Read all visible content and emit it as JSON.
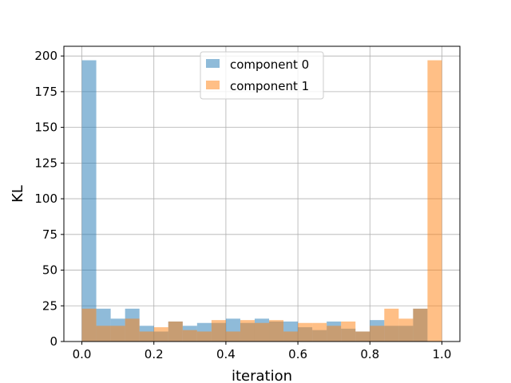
{
  "chart_data": {
    "type": "bar",
    "title": "",
    "xlabel": "iteration",
    "ylabel": "KL",
    "xlim": [
      -0.05,
      1.05
    ],
    "ylim": [
      0,
      206.8
    ],
    "xticks": [
      0.0,
      0.2,
      0.4,
      0.6,
      0.8,
      1.0
    ],
    "xtick_labels": [
      "0.0",
      "0.2",
      "0.4",
      "0.6",
      "0.8",
      "1.0"
    ],
    "yticks": [
      0,
      25,
      50,
      75,
      100,
      125,
      150,
      175,
      200
    ],
    "ytick_labels": [
      "0",
      "25",
      "50",
      "75",
      "100",
      "125",
      "150",
      "175",
      "200"
    ],
    "grid": true,
    "legend_position": "top-center",
    "bins": 25,
    "bin_range": [
      0.0,
      1.0
    ],
    "series": [
      {
        "name": "component 0",
        "color": "#1f77b4",
        "alpha": 0.5,
        "values": [
          197,
          23,
          16,
          23,
          11,
          7,
          14,
          11,
          13,
          13,
          16,
          13,
          16,
          14,
          14,
          10,
          8,
          14,
          9,
          7,
          15,
          11,
          11,
          23,
          0
        ]
      },
      {
        "name": "component 1",
        "color": "#ff7f0e",
        "alpha": 0.5,
        "values": [
          23,
          11,
          11,
          16,
          7,
          10,
          14,
          8,
          7,
          15,
          7,
          15,
          13,
          15,
          7,
          13,
          13,
          11,
          14,
          7,
          11,
          23,
          16,
          23,
          197
        ]
      }
    ]
  }
}
